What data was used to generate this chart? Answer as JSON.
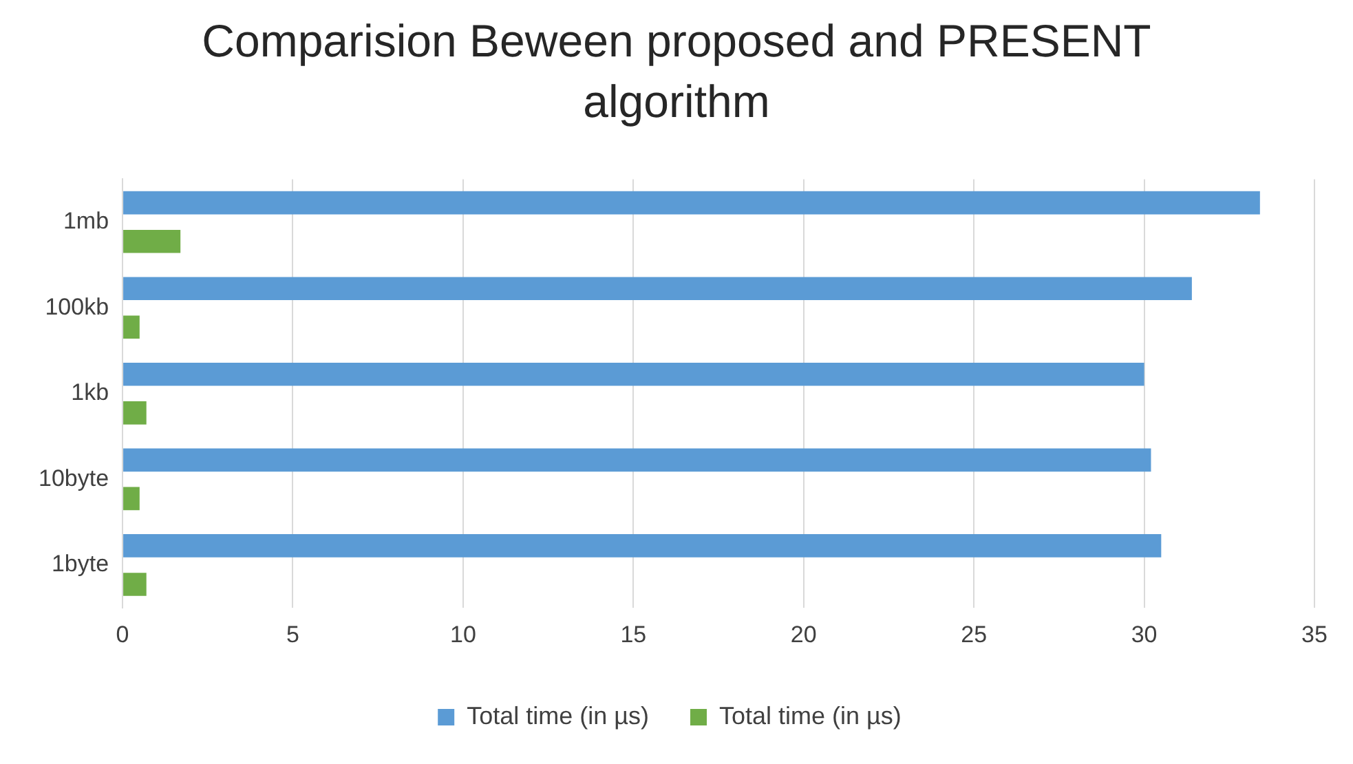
{
  "chart_data": {
    "type": "bar",
    "orientation": "horizontal",
    "title": "Comparision Beween proposed and PRESENT algorithm",
    "categories": [
      "1mb",
      "100kb",
      "1kb",
      "10byte",
      "1byte"
    ],
    "series": [
      {
        "name": "Total time (in µs)",
        "color": "#5b9bd5",
        "values": [
          33.4,
          31.4,
          30.0,
          30.2,
          30.5
        ]
      },
      {
        "name": "Total time (in µs)",
        "color": "#70ad47",
        "values": [
          1.7,
          0.5,
          0.7,
          0.5,
          0.7
        ]
      }
    ],
    "xlim": [
      0,
      35
    ],
    "xticks": [
      0,
      5,
      10,
      15,
      20,
      25,
      30,
      35
    ],
    "grid": "x",
    "legend": "bottom"
  }
}
